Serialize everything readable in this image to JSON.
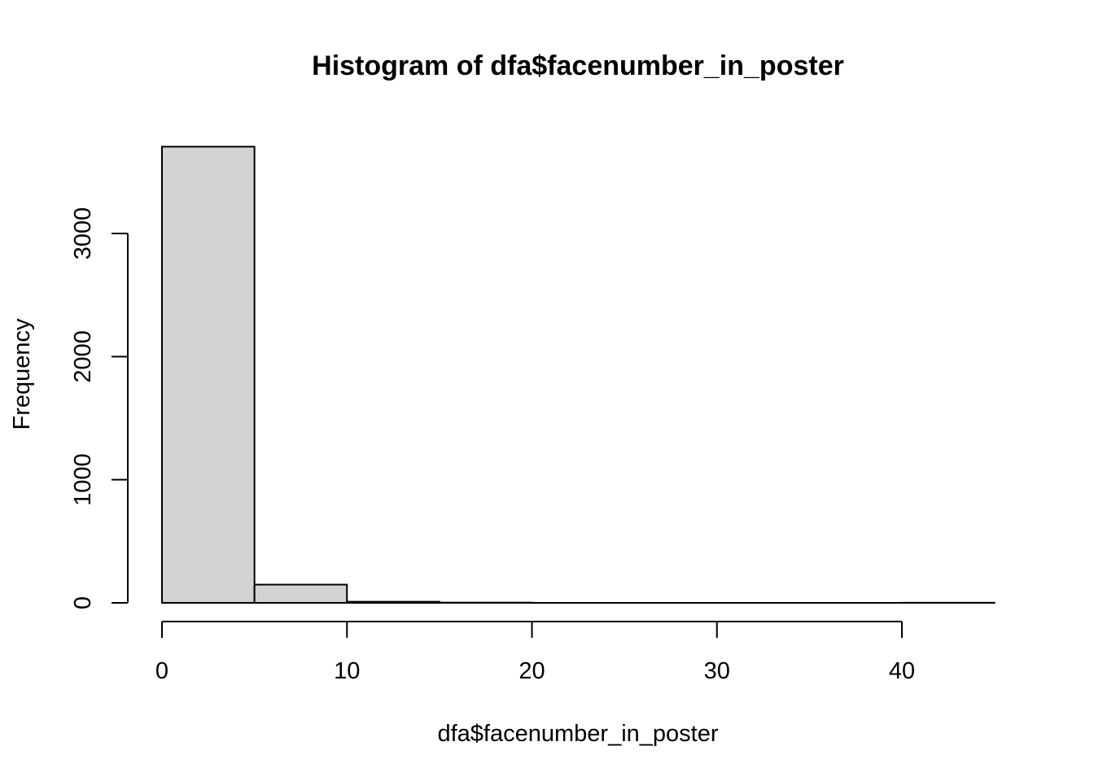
{
  "chart_data": {
    "type": "bar",
    "subtype": "histogram",
    "title": "Histogram of dfa$facenumber_in_poster",
    "xlabel": "dfa$facenumber_in_poster",
    "ylabel": "Frequency",
    "bins": [
      {
        "x0": 0,
        "x1": 5,
        "count": 3705
      },
      {
        "x0": 5,
        "x1": 10,
        "count": 148
      },
      {
        "x0": 10,
        "x1": 15,
        "count": 9
      },
      {
        "x0": 15,
        "x1": 20,
        "count": 2
      },
      {
        "x0": 20,
        "x1": 25,
        "count": 0
      },
      {
        "x0": 25,
        "x1": 30,
        "count": 0
      },
      {
        "x0": 30,
        "x1": 35,
        "count": 0
      },
      {
        "x0": 35,
        "x1": 40,
        "count": 0
      },
      {
        "x0": 40,
        "x1": 45,
        "count": 1
      }
    ],
    "xlim": [
      0,
      45
    ],
    "ylim": [
      0,
      3705
    ],
    "x_ticks": [
      0,
      10,
      20,
      30,
      40
    ],
    "x_tick_labels": [
      "0",
      "10",
      "20",
      "30",
      "40"
    ],
    "y_ticks": [
      0,
      1000,
      2000,
      3000
    ],
    "y_tick_labels": [
      "0",
      "1000",
      "2000",
      "3000"
    ],
    "bar_fill": "#d3d3d3",
    "bar_stroke": "#000000",
    "grid": false,
    "legend": "none"
  }
}
